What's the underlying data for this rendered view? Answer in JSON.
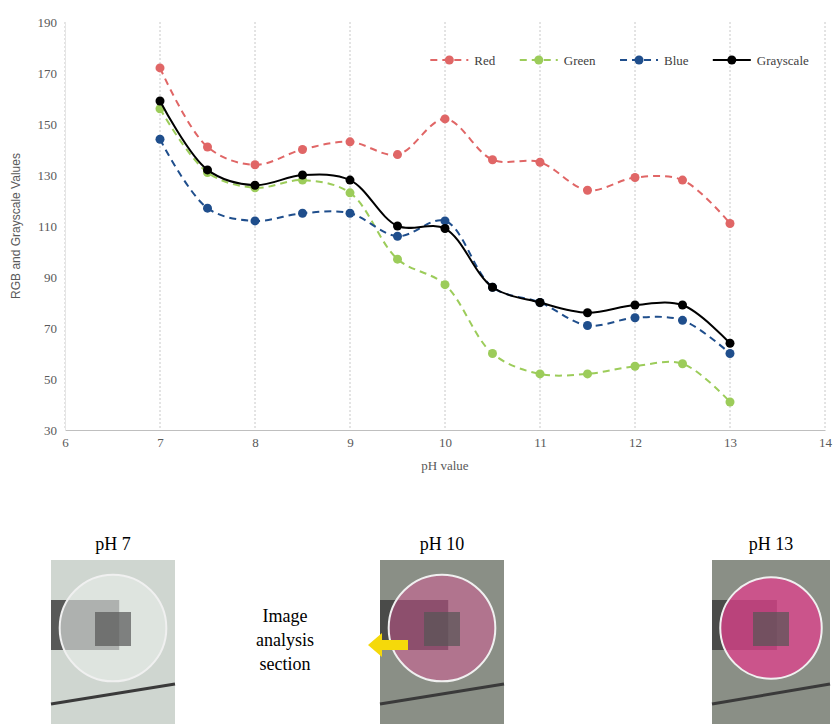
{
  "chart_data": {
    "type": "line",
    "x_label": "pH value",
    "y_label": "RGB and Grayscale Values",
    "x": [
      7,
      7.5,
      8,
      8.5,
      9,
      9.5,
      10,
      10.5,
      11,
      11.5,
      12,
      12.5,
      13
    ],
    "series": [
      {
        "name": "Red",
        "color": "#e06666",
        "line_style": "dashed",
        "marker": "circle",
        "values": [
          172,
          141,
          134,
          140,
          143,
          138,
          152,
          136,
          135,
          124,
          129,
          128,
          111
        ]
      },
      {
        "name": "Green",
        "color": "#9ccc5a",
        "line_style": "dashed",
        "marker": "circle",
        "values": [
          156,
          131,
          125,
          128,
          123,
          97,
          87,
          60,
          52,
          52,
          55,
          56,
          41
        ]
      },
      {
        "name": "Blue",
        "color": "#1f4e8c",
        "line_style": "dashed",
        "marker": "circle",
        "values": [
          144,
          117,
          112,
          115,
          115,
          106,
          112,
          86,
          80,
          71,
          74,
          73,
          60
        ]
      },
      {
        "name": "Grayscale",
        "color": "#000000",
        "line_style": "solid",
        "marker": "circle",
        "values": [
          159,
          132,
          126,
          130,
          128,
          110,
          109,
          86,
          80,
          76,
          79,
          79,
          64
        ]
      }
    ],
    "xlim": [
      6,
      14
    ],
    "xticks": [
      6,
      7,
      8,
      9,
      10,
      11,
      12,
      13,
      14
    ],
    "ylim": [
      30,
      190
    ],
    "yticks": [
      30,
      50,
      70,
      90,
      110,
      130,
      150,
      170,
      190
    ],
    "grid": "x",
    "legend": "top-right",
    "annotations": [
      "pH 7",
      "pH 10",
      "pH 13",
      "Image analysis section"
    ]
  }
}
